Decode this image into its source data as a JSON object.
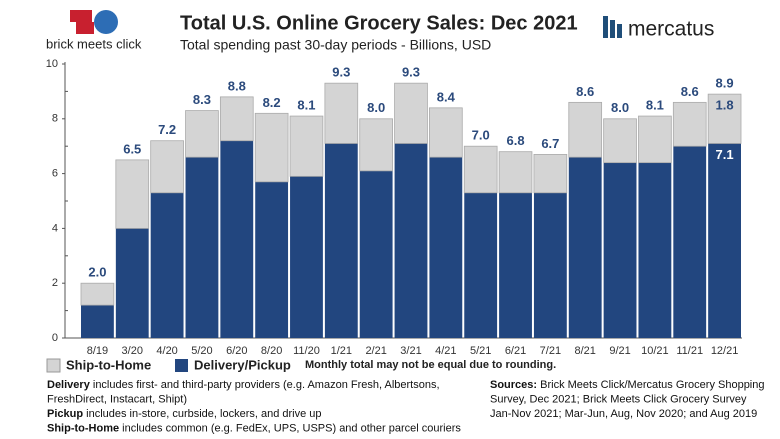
{
  "brand_left": "brick meets click",
  "brand_right": "mercatus",
  "chart_data": {
    "type": "stacked_bar",
    "title": "Total U.S. Online Grocery Sales: Dec 2021",
    "subtitle": "Total spending past 30-day periods - Billions, USD",
    "categories": [
      "8/19",
      "3/20",
      "4/20",
      "5/20",
      "6/20",
      "8/20",
      "11/20",
      "1/21",
      "2/21",
      "3/21",
      "4/21",
      "5/21",
      "6/21",
      "7/21",
      "8/21",
      "9/21",
      "10/21",
      "11/21",
      "12/21"
    ],
    "series": [
      {
        "name": "Delivery/Pickup",
        "color": "#22467f",
        "values": [
          1.2,
          4.0,
          5.3,
          6.6,
          7.2,
          5.7,
          5.9,
          7.1,
          6.1,
          7.1,
          6.6,
          5.3,
          5.3,
          5.3,
          6.6,
          6.4,
          6.4,
          7.0,
          7.1
        ],
        "value_labels": [
          null,
          null,
          null,
          null,
          null,
          null,
          null,
          null,
          null,
          null,
          null,
          null,
          null,
          null,
          null,
          null,
          null,
          null,
          "7.1"
        ]
      },
      {
        "name": "Ship-to-Home",
        "color": "#d4d4d4",
        "values": [
          0.8,
          2.5,
          1.9,
          1.7,
          1.6,
          2.5,
          2.2,
          2.2,
          1.9,
          2.2,
          1.8,
          1.7,
          1.5,
          1.4,
          2.0,
          1.6,
          1.7,
          1.6,
          1.8
        ],
        "value_labels": [
          null,
          null,
          null,
          null,
          null,
          null,
          null,
          null,
          null,
          null,
          null,
          null,
          null,
          null,
          null,
          null,
          null,
          null,
          "1.8"
        ]
      }
    ],
    "total_labels": [
      "2.0",
      "6.5",
      "7.2",
      "8.3",
      "8.8",
      "8.2",
      "8.1",
      "9.3",
      "8.0",
      "9.3",
      "8.4",
      "7.0",
      "6.8",
      "6.7",
      "8.6",
      "8.0",
      "8.1",
      "8.6",
      "8.9"
    ],
    "ylim": [
      0,
      10
    ],
    "yticks": [
      0,
      2,
      4,
      6,
      8,
      10
    ],
    "note": "Monthly total may not be equal due to rounding."
  },
  "footnotes_left": [
    {
      "term": "Delivery",
      "text": " includes first- and third-party providers (e.g. Amazon Fresh, Albertsons,"
    },
    {
      "term": null,
      "text": "FreshDirect, Instacart, Shipt)"
    },
    {
      "term": "Pickup",
      "text": " includes in-store, curbside, lockers, and drive up"
    },
    {
      "term": "Ship-to-Home",
      "text": " includes common (e.g. FedEx, UPS, USPS) and other parcel couriers"
    }
  ],
  "footnotes_right": [
    {
      "term": "Sources:",
      "text": " Brick Meets Click/Mercatus Grocery Shopping"
    },
    {
      "term": null,
      "text": "Survey, Dec 2021; Brick Meets Click Grocery Survey"
    },
    {
      "term": null,
      "text": "Jan-Nov 2021; Mar-Jun, Aug, Nov 2020; and Aug 2019"
    }
  ]
}
